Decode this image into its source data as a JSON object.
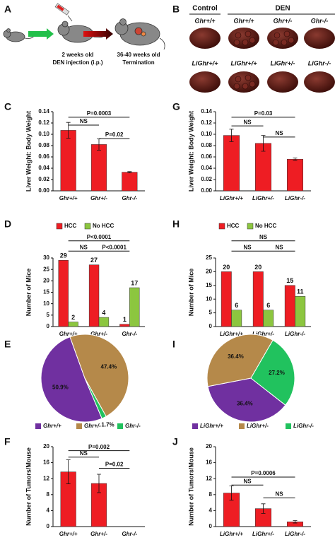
{
  "figure": {
    "schematic": {
      "label": "A",
      "step1_age": "2 weeks old",
      "step1_action": "DEN injection (i.p.)",
      "step2_age": "36-40 weeks old",
      "step2_action": "Termination"
    },
    "photos": {
      "label": "B",
      "control": "Control",
      "den": "DEN",
      "top_row": [
        "Ghr+/+",
        "Ghr+/+",
        "Ghr+/-",
        "Ghr-/-"
      ],
      "bottom_row": [
        "LiGhr+/+",
        "LiGhr+/+",
        "LiGhr+/-",
        "LiGhr-/-"
      ]
    }
  },
  "chart_data": [
    {
      "type": "bar",
      "label": "C",
      "ylabel": "Liver Weight: Body Weight",
      "categories": [
        "Ghr+/+",
        "Ghr+/-",
        "Ghr-/-"
      ],
      "values": [
        0.107,
        0.082,
        0.033
      ],
      "errors": [
        0.014,
        0.01,
        0.001
      ],
      "color": "#ee1d23",
      "ylim": [
        0,
        0.14
      ],
      "yticks": [
        {
          "value": 0,
          "label": "0.00"
        },
        {
          "value": 0.02,
          "label": "0.02"
        },
        {
          "value": 0.04,
          "label": "0.04"
        },
        {
          "value": 0.06,
          "label": "0.06"
        },
        {
          "value": 0.08,
          "label": "0.08"
        },
        {
          "value": 0.1,
          "label": "0.10"
        },
        {
          "value": 0.12,
          "label": "0.12"
        },
        {
          "value": 0.14,
          "label": "0.14"
        }
      ],
      "annotations": [
        "P=0.0003",
        "NS",
        "P=0.02"
      ]
    },
    {
      "type": "bar",
      "label": "D",
      "ylabel": "Number of Mice",
      "categories": [
        "Ghr+/+",
        "Ghr+/-",
        "Ghr-/-"
      ],
      "series": [
        {
          "name": "HCC",
          "color": "#ee1d23",
          "values": [
            29,
            27,
            1
          ]
        },
        {
          "name": "No HCC",
          "color": "#8cc63f",
          "values": [
            2,
            4,
            17
          ]
        }
      ],
      "ylim": [
        0,
        30
      ],
      "yticks": [
        0,
        5,
        10,
        15,
        20,
        25,
        30
      ],
      "annotations": [
        "P<0.0001",
        "NS",
        "P<0.0001"
      ]
    },
    {
      "type": "pie",
      "label": "E",
      "categories": [
        "Ghr+/+",
        "Ghr+/-",
        "Ghr-/-"
      ],
      "values": [
        50.9,
        47.4,
        1.7
      ],
      "value_labels": [
        "50.9%",
        "47.4%",
        "1.7%"
      ],
      "colors": [
        "#7030a0",
        "#b5894a",
        "#21c25e"
      ]
    },
    {
      "type": "bar",
      "label": "F",
      "ylabel": "Number of Tumors/Mouse",
      "categories": [
        "Ghr+/+",
        "Ghr+/-",
        "Ghr-/-"
      ],
      "values": [
        13.7,
        10.8,
        0
      ],
      "errors": [
        3.0,
        2.3,
        0
      ],
      "color": "#ee1d23",
      "ylim": [
        0,
        20
      ],
      "yticks": [
        0,
        4,
        8,
        12,
        16,
        20
      ],
      "annotations": [
        "P=0.002",
        "NS",
        "P=0.02"
      ]
    },
    {
      "type": "bar",
      "label": "G",
      "ylabel": "Liver Weight: Body Weight",
      "categories": [
        "LiGhr+/+",
        "LiGhr+/-",
        "LiGhr-/-"
      ],
      "values": [
        0.098,
        0.084,
        0.056
      ],
      "errors": [
        0.011,
        0.014,
        0.002
      ],
      "color": "#ee1d23",
      "ylim": [
        0,
        0.14
      ],
      "yticks": [
        {
          "value": 0,
          "label": "0.00"
        },
        {
          "value": 0.02,
          "label": "0.02"
        },
        {
          "value": 0.04,
          "label": "0.04"
        },
        {
          "value": 0.06,
          "label": "0.06"
        },
        {
          "value": 0.08,
          "label": "0.08"
        },
        {
          "value": 0.1,
          "label": "0.10"
        },
        {
          "value": 0.12,
          "label": "0.12"
        },
        {
          "value": 0.14,
          "label": "0.14"
        }
      ],
      "annotations": [
        "P=0.03",
        "NS",
        "NS"
      ]
    },
    {
      "type": "bar",
      "label": "H",
      "ylabel": "Number of Mice",
      "categories": [
        "LiGhr+/+",
        "LiGhr+/-",
        "LiGhr-/-"
      ],
      "series": [
        {
          "name": "HCC",
          "color": "#ee1d23",
          "values": [
            20,
            20,
            15
          ]
        },
        {
          "name": "No HCC",
          "color": "#8cc63f",
          "values": [
            6,
            6,
            11
          ]
        }
      ],
      "ylim": [
        0,
        25
      ],
      "yticks": [
        0,
        5,
        10,
        15,
        20,
        25
      ],
      "annotations": [
        "NS",
        "NS",
        "NS"
      ]
    },
    {
      "type": "pie",
      "label": "I",
      "categories": [
        "LiGhr+/+",
        "LiGhr+/-",
        "LiGhr-/-"
      ],
      "values": [
        36.4,
        36.4,
        27.2
      ],
      "value_labels": [
        "36.4%",
        "36.4%",
        "27.2%"
      ],
      "colors": [
        "#7030a0",
        "#b5894a",
        "#21c25e"
      ]
    },
    {
      "type": "bar",
      "label": "J",
      "ylabel": "Number of Tumors/Mouse",
      "categories": [
        "LiGhr+/+",
        "LiGhr+/-",
        "LiGhr-/-"
      ],
      "values": [
        8.4,
        4.5,
        1.2
      ],
      "errors": [
        1.8,
        1.2,
        0.3
      ],
      "color": "#ee1d23",
      "ylim": [
        0,
        20
      ],
      "yticks": [
        0,
        4,
        8,
        12,
        16,
        20
      ],
      "annotations": [
        "P=0.0006",
        "NS",
        "NS"
      ]
    }
  ]
}
